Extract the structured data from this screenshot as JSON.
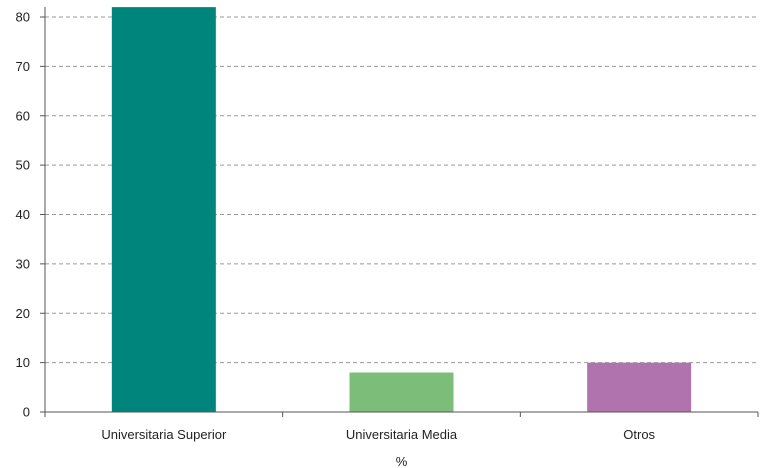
{
  "chart_data": {
    "type": "bar",
    "categories": [
      "Universitaria Superior",
      "Universitaria Media",
      "Otros"
    ],
    "values": [
      82,
      8,
      10
    ],
    "colors": [
      "#00857d",
      "#7dbd7a",
      "#b173ad"
    ],
    "title": "",
    "xlabel": "%",
    "ylabel": "",
    "ylim": [
      0,
      80
    ],
    "yticks": [
      0,
      10,
      20,
      30,
      40,
      50,
      60,
      70,
      80
    ],
    "grid": true,
    "grid_style": "dashed",
    "legend": "none"
  }
}
